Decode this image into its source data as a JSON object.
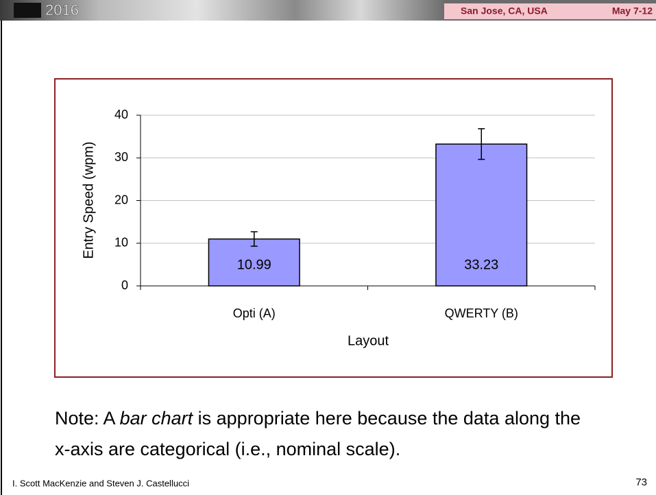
{
  "header": {
    "year": "2016",
    "location": "San Jose, CA, USA",
    "dates": "May 7-12"
  },
  "chart_data": {
    "type": "bar",
    "categories": [
      "Opti (A)",
      "QWERTY (B)"
    ],
    "values": [
      10.99,
      33.23
    ],
    "errors": [
      1.7,
      3.6
    ],
    "color": "#9999ff",
    "ylim": [
      0,
      40
    ],
    "yticks": [
      0,
      10,
      20,
      30,
      40
    ],
    "grid": true,
    "y_label": "Entry Speed (wpm)",
    "x_label": "Layout"
  },
  "note": {
    "before": "Note: A ",
    "emphasis": "bar chart",
    "after": " is appropriate here because the data along the x-axis are categorical (i.e., nominal scale)."
  },
  "footer": {
    "authors": "I. Scott MacKenzie and Steven J. Castellucci",
    "page": 73
  }
}
